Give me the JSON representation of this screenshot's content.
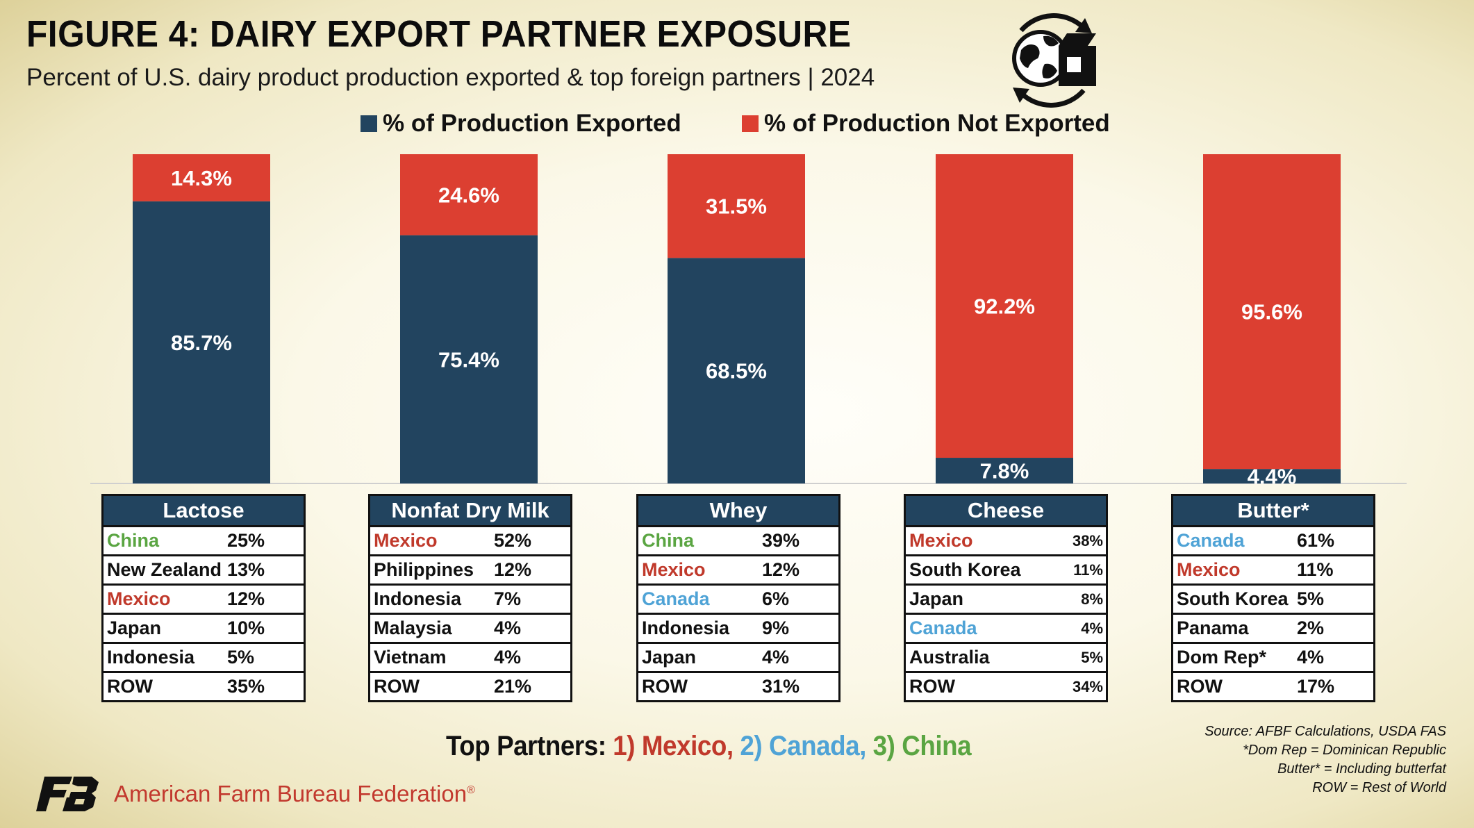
{
  "header": {
    "title": "FIGURE 4: DAIRY EXPORT PARTNER EXPOSURE",
    "subtitle": "Percent of U.S. dairy product production exported & top foreign partners | 2024"
  },
  "colors": {
    "exported": "#22445f",
    "not_exported": "#dc3f31",
    "mexico": "#c0392b",
    "canada": "#4fa3d6",
    "china": "#5aa542",
    "black": "#111111"
  },
  "chart_data": {
    "type": "bar",
    "stacked": true,
    "categories": [
      "Lactose",
      "Nonfat Dry Milk",
      "Whey",
      "Cheese",
      "Butter*"
    ],
    "ylim": [
      0,
      100
    ],
    "legend": "top-center",
    "series": [
      {
        "name": "% of Production Exported",
        "values": [
          85.7,
          75.4,
          68.5,
          7.8,
          4.4
        ],
        "labels": [
          "85.7%",
          "75.4%",
          "68.5%",
          "7.8%",
          "4.4%"
        ],
        "color": "#22445f"
      },
      {
        "name": "% of Production Not Exported",
        "values": [
          14.3,
          24.6,
          31.5,
          92.2,
          95.6
        ],
        "labels": [
          "14.3%",
          "24.6%",
          "31.5%",
          "92.2%",
          "95.6%"
        ],
        "color": "#dc3f31"
      }
    ]
  },
  "tables": [
    {
      "title": "Lactose",
      "rows": [
        {
          "country": "China",
          "pct": "25%",
          "color": "china"
        },
        {
          "country": "New Zealand",
          "pct": "13%",
          "color": "black"
        },
        {
          "country": "Mexico",
          "pct": "12%",
          "color": "mexico"
        },
        {
          "country": "Japan",
          "pct": "10%",
          "color": "black"
        },
        {
          "country": "Indonesia",
          "pct": "5%",
          "color": "black"
        },
        {
          "country": "ROW",
          "pct": "35%",
          "color": "black"
        }
      ]
    },
    {
      "title": "Nonfat Dry Milk",
      "rows": [
        {
          "country": "Mexico",
          "pct": "52%",
          "color": "mexico"
        },
        {
          "country": "Philippines",
          "pct": "12%",
          "color": "black"
        },
        {
          "country": "Indonesia",
          "pct": "7%",
          "color": "black"
        },
        {
          "country": "Malaysia",
          "pct": "4%",
          "color": "black"
        },
        {
          "country": "Vietnam",
          "pct": "4%",
          "color": "black"
        },
        {
          "country": "ROW",
          "pct": "21%",
          "color": "black"
        }
      ]
    },
    {
      "title": "Whey",
      "rows": [
        {
          "country": "China",
          "pct": "39%",
          "color": "china"
        },
        {
          "country": "Mexico",
          "pct": "12%",
          "color": "mexico"
        },
        {
          "country": "Canada",
          "pct": "6%",
          "color": "canada"
        },
        {
          "country": "Indonesia",
          "pct": "9%",
          "color": "black"
        },
        {
          "country": "Japan",
          "pct": "4%",
          "color": "black"
        },
        {
          "country": "ROW",
          "pct": "31%",
          "color": "black"
        }
      ]
    },
    {
      "title": "Cheese",
      "rows": [
        {
          "country": "Mexico",
          "pct": "38%",
          "color": "mexico"
        },
        {
          "country": "South Korea",
          "pct": "11%",
          "color": "black"
        },
        {
          "country": "Japan",
          "pct": "8%",
          "color": "black"
        },
        {
          "country": "Canada",
          "pct": "4%",
          "color": "canada"
        },
        {
          "country": "Australia",
          "pct": "5%",
          "color": "black"
        },
        {
          "country": "ROW",
          "pct": "34%",
          "color": "black"
        }
      ]
    },
    {
      "title": "Butter*",
      "rows": [
        {
          "country": "Canada",
          "pct": "61%",
          "color": "canada"
        },
        {
          "country": "Mexico",
          "pct": "11%",
          "color": "mexico"
        },
        {
          "country": "South Korea",
          "pct": "5%",
          "color": "black"
        },
        {
          "country": "Panama",
          "pct": "2%",
          "color": "black"
        },
        {
          "country": "Dom Rep*",
          "pct": "4%",
          "color": "black"
        },
        {
          "country": "ROW",
          "pct": "17%",
          "color": "black"
        }
      ]
    }
  ],
  "top_partners": {
    "prefix": "Top Partners: ",
    "p1": "1) Mexico",
    "sep1": ", ",
    "p2": "2) Canada",
    "sep2": ", ",
    "p3": "3) China"
  },
  "notes": {
    "source": "Source: AFBF Calculations, USDA FAS",
    "note1": "*Dom Rep = Dominican Republic",
    "note2": "Butter* = Including butterfat",
    "note3": "ROW = Rest of World"
  },
  "footer": {
    "logo_text": "FB",
    "org_name": "American Farm Bureau Federation",
    "registered": "®"
  }
}
